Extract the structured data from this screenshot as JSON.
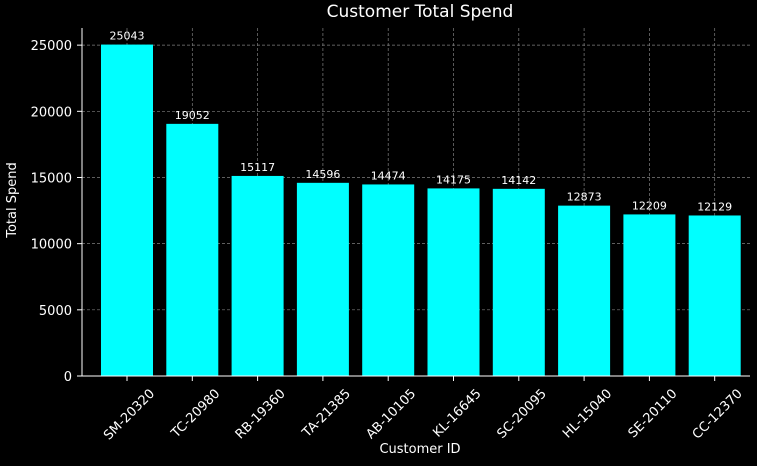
{
  "chart_data": {
    "type": "bar",
    "title": "Customer Total Spend",
    "xlabel": "Customer ID",
    "ylabel": "Total Spend",
    "categories": [
      "SM-20320",
      "TC-20980",
      "RB-19360",
      "TA-21385",
      "AB-10105",
      "KL-16645",
      "SC-20095",
      "HL-15040",
      "SE-20110",
      "CC-12370"
    ],
    "values": [
      25043,
      19052,
      15117,
      14596,
      14474,
      14175,
      14142,
      12873,
      12209,
      12129
    ],
    "ylim": [
      0,
      26295
    ],
    "yticks": [
      0,
      5000,
      10000,
      15000,
      20000,
      25000
    ],
    "grid": true,
    "legend": "none",
    "colors": {
      "background": "#000000",
      "bar": "#00ffff",
      "text": "#ffffff",
      "grid": "#7f7f7f"
    }
  }
}
